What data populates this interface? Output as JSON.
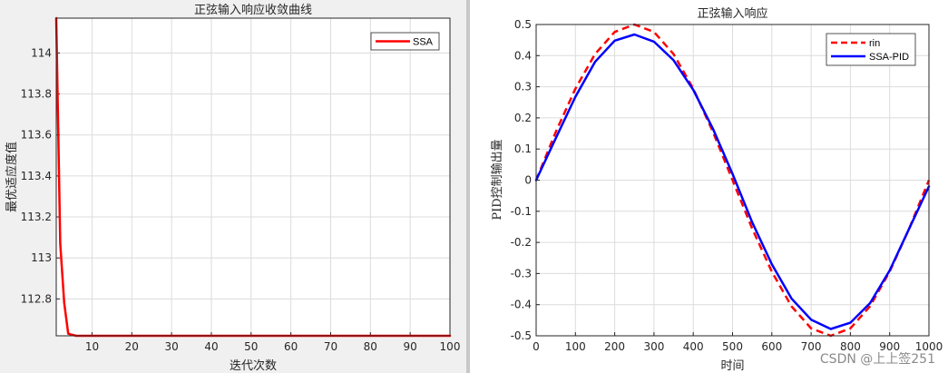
{
  "chart_data": [
    {
      "type": "line",
      "title": "正弦输入响应收敛曲线",
      "xlabel": "迭代次数",
      "ylabel": "最优适应度值",
      "xlim": [
        1,
        100
      ],
      "ylim": [
        112.62,
        114.17
      ],
      "x_ticks": [
        10,
        20,
        30,
        40,
        50,
        60,
        70,
        80,
        90,
        100
      ],
      "y_ticks": [
        112.8,
        113,
        113.2,
        113.4,
        113.6,
        113.8,
        114
      ],
      "grid": true,
      "legend_position": "top-right",
      "series": [
        {
          "name": "SSA",
          "color": "#ff0000",
          "style": "solid",
          "x": [
            1,
            2,
            3,
            4,
            5,
            6,
            8,
            10,
            20,
            30,
            40,
            50,
            60,
            70,
            80,
            90,
            100
          ],
          "y": [
            114.17,
            113.07,
            112.78,
            112.63,
            112.625,
            112.62,
            112.62,
            112.62,
            112.62,
            112.62,
            112.62,
            112.62,
            112.62,
            112.62,
            112.62,
            112.62,
            112.62
          ]
        }
      ]
    },
    {
      "type": "line",
      "title": "正弦输入响应",
      "xlabel": "时间",
      "ylabel": "PID控制输出量",
      "xlim": [
        0,
        1000
      ],
      "ylim": [
        -0.5,
        0.5
      ],
      "x_ticks": [
        0,
        100,
        200,
        300,
        400,
        500,
        600,
        700,
        800,
        900,
        1000
      ],
      "y_ticks": [
        -0.5,
        -0.4,
        -0.3,
        -0.2,
        -0.1,
        0,
        0.1,
        0.2,
        0.3,
        0.4,
        0.5
      ],
      "grid": true,
      "legend_position": "top-right",
      "series": [
        {
          "name": "rin",
          "color": "#ff0000",
          "style": "dashed",
          "x": [
            0,
            50,
            100,
            150,
            200,
            250,
            300,
            350,
            400,
            450,
            500,
            550,
            600,
            650,
            700,
            750,
            800,
            850,
            900,
            950,
            1000
          ],
          "y": [
            0,
            0.155,
            0.294,
            0.405,
            0.476,
            0.5,
            0.476,
            0.405,
            0.294,
            0.155,
            0,
            -0.155,
            -0.294,
            -0.405,
            -0.476,
            -0.5,
            -0.476,
            -0.405,
            -0.294,
            -0.155,
            0
          ]
        },
        {
          "name": "SSA-PID",
          "color": "#0000ff",
          "style": "solid",
          "x": [
            0,
            50,
            100,
            150,
            200,
            250,
            300,
            350,
            400,
            450,
            500,
            550,
            600,
            650,
            700,
            750,
            800,
            850,
            900,
            950,
            1000
          ],
          "y": [
            0,
            0.135,
            0.268,
            0.38,
            0.448,
            0.468,
            0.445,
            0.385,
            0.29,
            0.165,
            0.02,
            -0.135,
            -0.27,
            -0.38,
            -0.448,
            -0.478,
            -0.458,
            -0.395,
            -0.29,
            -0.155,
            -0.02
          ]
        }
      ]
    }
  ],
  "watermark": "CSDN @上上签251"
}
